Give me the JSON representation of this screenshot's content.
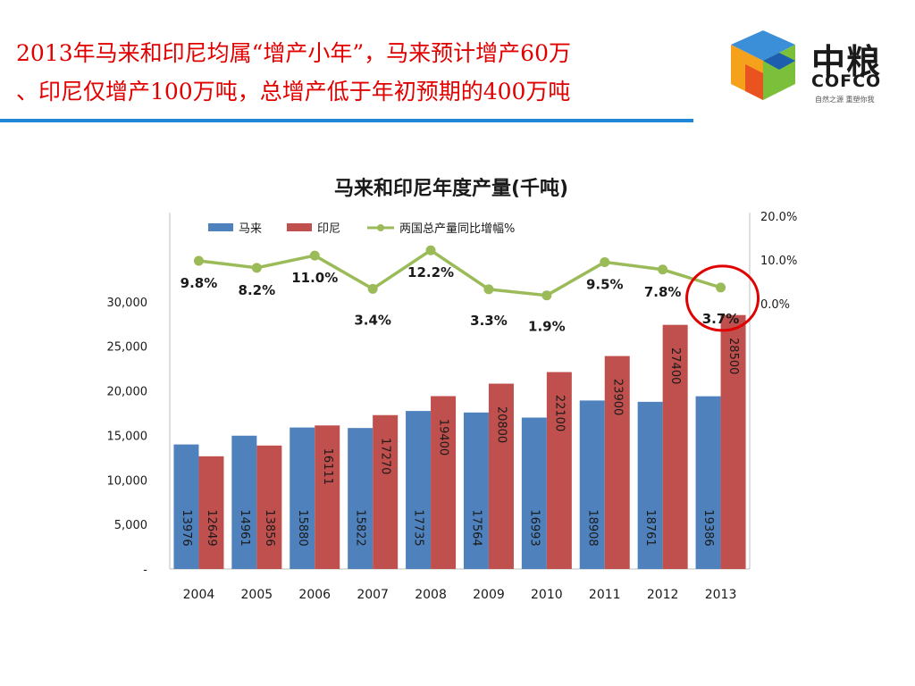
{
  "headline": {
    "line1": "2013年马来和印尼均属“增产小年”，马来预计增产60万",
    "line2": "、印尼仅增产100万吨，总增产低于年初预期的400万吨"
  },
  "logo": {
    "cn": "中粮",
    "en": "COFCO",
    "tagline": "自然之源 重塑你我"
  },
  "colors": {
    "malaysia": "#4f81bd",
    "indonesia": "#c0504d",
    "growth": "#9bbb59",
    "headline": "#e00000",
    "rule": "#1f87d6",
    "circle": "#e00000"
  },
  "chart_data": {
    "type": "bar",
    "title": "马来和印尼年度产量(千吨)",
    "categories": [
      "2004",
      "2005",
      "2006",
      "2007",
      "2008",
      "2009",
      "2010",
      "2011",
      "2012",
      "2013"
    ],
    "series": [
      {
        "name": "马来",
        "type": "bar",
        "axis": "left",
        "values": [
          13976,
          14961,
          15880,
          15822,
          17735,
          17564,
          16993,
          18908,
          18761,
          19386
        ]
      },
      {
        "name": "印尼",
        "type": "bar",
        "axis": "left",
        "values": [
          12649,
          13856,
          16111,
          17270,
          19400,
          20800,
          22100,
          23900,
          27400,
          28500
        ]
      },
      {
        "name": "两国总产量同比增幅%",
        "type": "line",
        "axis": "right",
        "values": [
          9.8,
          8.2,
          11.0,
          3.4,
          12.2,
          3.3,
          1.9,
          9.5,
          7.8,
          3.7
        ],
        "labels": [
          "9.8%",
          "8.2%",
          "11.0%",
          "3.4%",
          "12.2%",
          "3.3%",
          "1.9%",
          "9.5%",
          "7.8%",
          "3.7%"
        ]
      }
    ],
    "left_axis": {
      "ticks": [
        "-",
        "5,000",
        "10,000",
        "15,000",
        "20,000",
        "25,000",
        "30,000"
      ],
      "tick_values": [
        0,
        5000,
        10000,
        15000,
        20000,
        25000,
        30000
      ]
    },
    "right_axis": {
      "ticks": [
        "0.0%",
        "10.0%",
        "20.0%"
      ],
      "tick_values": [
        0,
        10,
        20
      ]
    },
    "legend_position": "top-left",
    "highlight": "2013",
    "grid": false
  }
}
